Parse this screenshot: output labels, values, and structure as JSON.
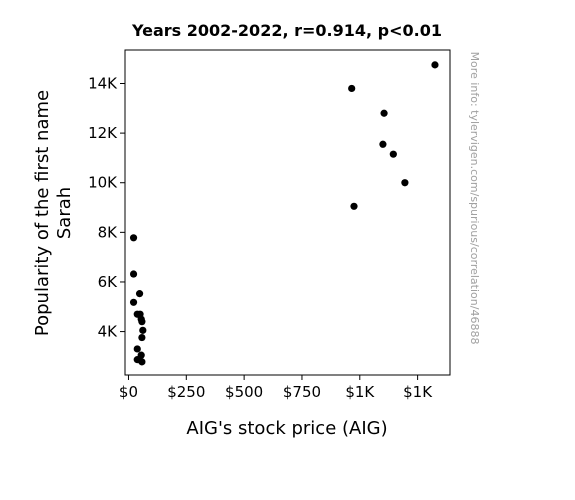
{
  "chart_data": {
    "type": "scatter",
    "title": "Years 2002-2022, r=0.914, p<0.01",
    "xlabel": "AIG's stock price (AIG)",
    "ylabel_lines": [
      "Popularity of the first name",
      "Sarah"
    ],
    "side_note": "More info: tylervigen.com/spurious/correlation/46888",
    "xlim": [
      -15,
      1390
    ],
    "ylim": [
      2250,
      15350
    ],
    "x_ticks": [
      {
        "value": 0,
        "label": "$0"
      },
      {
        "value": 250,
        "label": "$250"
      },
      {
        "value": 500,
        "label": "$500"
      },
      {
        "value": 750,
        "label": "$750"
      },
      {
        "value": 1000,
        "label": "$1K"
      },
      {
        "value": 1250,
        "label": "$1K"
      }
    ],
    "y_ticks": [
      {
        "value": 4000,
        "label": "4K"
      },
      {
        "value": 6000,
        "label": "6K"
      },
      {
        "value": 8000,
        "label": "8K"
      },
      {
        "value": 10000,
        "label": "10K"
      },
      {
        "value": 12000,
        "label": "12K"
      },
      {
        "value": 14000,
        "label": "14K"
      }
    ],
    "marker_color": "#000000",
    "points": [
      {
        "x": 1325,
        "y": 14750
      },
      {
        "x": 965,
        "y": 13800
      },
      {
        "x": 1105,
        "y": 12800
      },
      {
        "x": 1100,
        "y": 11550
      },
      {
        "x": 1145,
        "y": 11150
      },
      {
        "x": 1195,
        "y": 10000
      },
      {
        "x": 975,
        "y": 9050
      },
      {
        "x": 22,
        "y": 7780
      },
      {
        "x": 22,
        "y": 6320
      },
      {
        "x": 48,
        "y": 5530
      },
      {
        "x": 22,
        "y": 5180
      },
      {
        "x": 38,
        "y": 4700
      },
      {
        "x": 50,
        "y": 4700
      },
      {
        "x": 55,
        "y": 4500
      },
      {
        "x": 58,
        "y": 4400
      },
      {
        "x": 62,
        "y": 4050
      },
      {
        "x": 58,
        "y": 3760
      },
      {
        "x": 38,
        "y": 3300
      },
      {
        "x": 55,
        "y": 3050
      },
      {
        "x": 38,
        "y": 2870
      },
      {
        "x": 58,
        "y": 2780
      }
    ]
  }
}
